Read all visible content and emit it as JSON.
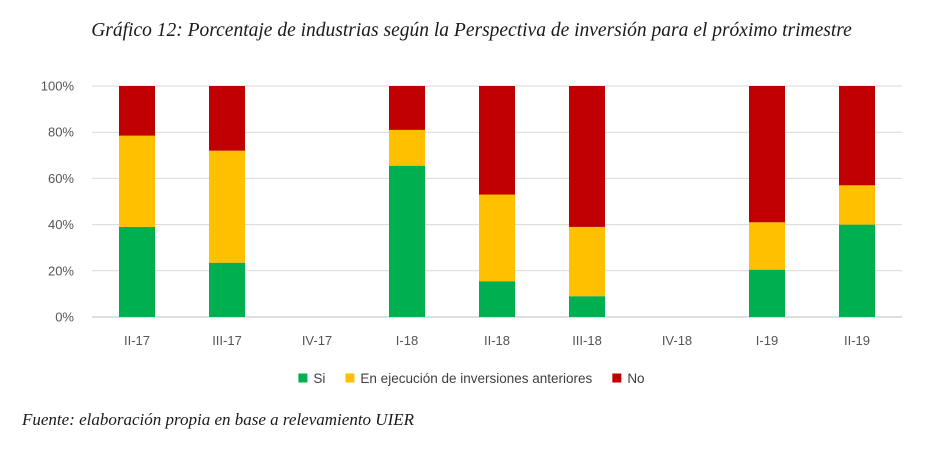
{
  "chart_data": {
    "type": "bar",
    "stacked": true,
    "title": "Gráfico 12: Porcentaje de industrias según la Perspectiva de inversión para el próximo trimestre",
    "categories": [
      "II-17",
      "III-17",
      "IV-17",
      "I-18",
      "II-18",
      "III-18",
      "IV-18",
      "I-19",
      "II-19"
    ],
    "series": [
      {
        "name": "Si",
        "color": "#00B050",
        "values": [
          39,
          23.5,
          null,
          65.5,
          15.5,
          9,
          null,
          20.5,
          40
        ]
      },
      {
        "name": "En ejecución de inversiones anteriores",
        "color": "#FFC000",
        "values": [
          39.5,
          48.5,
          null,
          15.5,
          37.5,
          30,
          null,
          20.5,
          17
        ]
      },
      {
        "name": "No",
        "color": "#C00000",
        "values": [
          21.5,
          28,
          null,
          19,
          47,
          61,
          null,
          59,
          43
        ]
      }
    ],
    "yticks": [
      "0%",
      "20%",
      "40%",
      "60%",
      "80%",
      "100%"
    ],
    "ylim": [
      0,
      100
    ],
    "xlabel": "",
    "ylabel": "",
    "legend_position": "bottom",
    "grid": true
  },
  "source": "Fuente: elaboración propia en base a relevamiento UIER"
}
